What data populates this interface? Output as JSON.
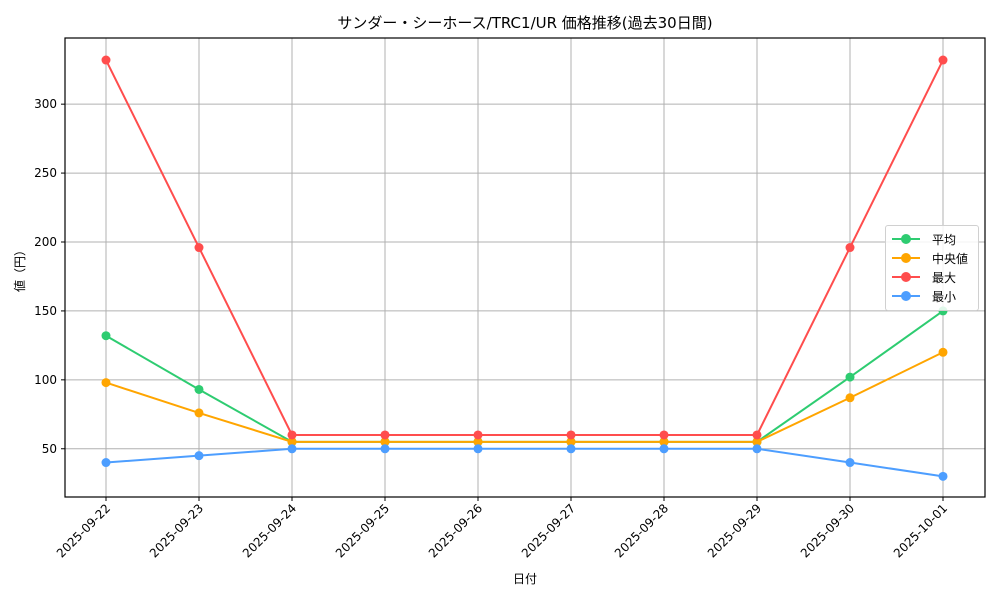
{
  "chart_data": {
    "type": "line",
    "title": "サンダー・シーホース/TRC1/UR 価格推移(過去30日間)",
    "xlabel": "日付",
    "ylabel": "値（円）",
    "categories": [
      "2025-09-22",
      "2025-09-23",
      "2025-09-24",
      "2025-09-25",
      "2025-09-26",
      "2025-09-27",
      "2025-09-28",
      "2025-09-29",
      "2025-09-30",
      "2025-10-01"
    ],
    "series": [
      {
        "name": "平均",
        "color": "#2ecc71",
        "values": [
          132,
          93,
          55,
          55,
          55,
          55,
          55,
          55,
          102,
          150
        ]
      },
      {
        "name": "中央値",
        "color": "#ffa500",
        "values": [
          98,
          76,
          55,
          55,
          55,
          55,
          55,
          55,
          87,
          120
        ]
      },
      {
        "name": "最大",
        "color": "#ff4d4d",
        "values": [
          332,
          196,
          60,
          60,
          60,
          60,
          60,
          60,
          196,
          332
        ]
      },
      {
        "name": "最小",
        "color": "#4d9eff",
        "values": [
          40,
          45,
          50,
          50,
          50,
          50,
          50,
          50,
          40,
          30
        ]
      }
    ],
    "yticks": [
      50,
      100,
      150,
      200,
      250,
      300
    ],
    "ylim": [
      15,
      348
    ],
    "grid": true,
    "legend_position": "center right"
  },
  "legend": {
    "items": [
      {
        "label": "平均",
        "color": "#2ecc71"
      },
      {
        "label": "中央値",
        "color": "#ffa500"
      },
      {
        "label": "最大",
        "color": "#ff4d4d"
      },
      {
        "label": "最小",
        "color": "#4d9eff"
      }
    ]
  }
}
